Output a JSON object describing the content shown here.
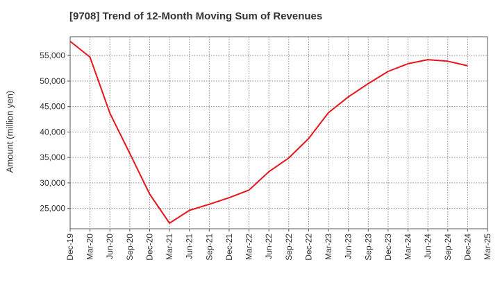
{
  "chart_data": {
    "type": "line",
    "title": "[9708]  Trend of 12-Month Moving Sum of Revenues",
    "xlabel": "",
    "ylabel": "Amount (million yen)",
    "categories": [
      "Dec-19",
      "Mar-20",
      "Jun-20",
      "Sep-20",
      "Dec-20",
      "Mar-21",
      "Jun-21",
      "Sep-21",
      "Dec-21",
      "Mar-22",
      "Jun-22",
      "Sep-22",
      "Dec-22",
      "Mar-23",
      "Jun-23",
      "Sep-23",
      "Dec-23",
      "Mar-24",
      "Jun-24",
      "Sep-24",
      "Dec-24",
      "Mar-25"
    ],
    "series": [
      {
        "color": "#e8141c",
        "values": [
          57800,
          54700,
          43700,
          35800,
          27800,
          22100,
          24600,
          25800,
          27100,
          28600,
          32200,
          34900,
          38700,
          43800,
          46900,
          49500,
          51900,
          53400,
          54200,
          53900,
          53000,
          null
        ]
      }
    ],
    "yticks": [
      25000,
      30000,
      35000,
      40000,
      45000,
      50000,
      55000
    ],
    "ytick_labels": [
      "25,000",
      "30,000",
      "35,000",
      "40,000",
      "45,000",
      "50,000",
      "55,000"
    ],
    "ylim": [
      21000,
      58700
    ],
    "grid": true
  }
}
